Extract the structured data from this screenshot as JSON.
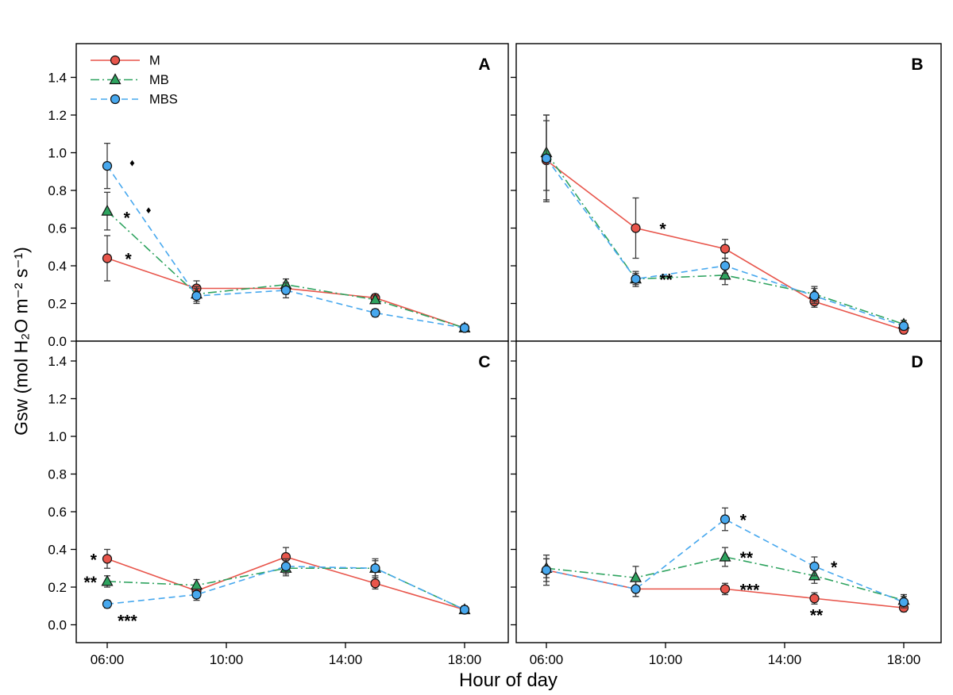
{
  "chart_data": {
    "type": "line",
    "title": "",
    "xlabel": "Hour of day",
    "ylabel": "Gsw (mol H₂O m⁻² s⁻¹)",
    "x_hours": [
      6,
      9,
      12,
      15,
      18
    ],
    "x_tick_hours": [
      6,
      10,
      14,
      18
    ],
    "x_tick_labels": [
      "06:00",
      "10:00",
      "14:00",
      "18:00"
    ],
    "y_ticks": [
      0,
      0.2,
      0.4,
      0.6,
      0.8,
      1.0,
      1.2,
      1.4
    ],
    "y_tick_labels": [
      "0.0",
      "0.2",
      "0.4",
      "0.6",
      "0.8",
      "1.0",
      "1.2",
      "1.4"
    ],
    "ylim_top_row": [
      0,
      1.58
    ],
    "ylim_bottom_row": [
      -0.1,
      1.5
    ],
    "grid": false,
    "legend_panel": "A",
    "series_styles": [
      {
        "name": "M",
        "color": "#e8554b",
        "marker": "circle",
        "line": "solid"
      },
      {
        "name": "MB",
        "color": "#2ea35f",
        "marker": "triangle",
        "line": "dashdot"
      },
      {
        "name": "MBS",
        "color": "#47a8ee",
        "marker": "circle",
        "line": "dash"
      }
    ],
    "panels": [
      {
        "label": "A",
        "series": [
          {
            "name": "M",
            "values": [
              0.44,
              0.28,
              0.28,
              0.23,
              0.07
            ],
            "errors": [
              0.12,
              0.04,
              0.03,
              0.02,
              0.02
            ]
          },
          {
            "name": "MB",
            "values": [
              0.69,
              0.25,
              0.3,
              0.22,
              0.07
            ],
            "errors": [
              0.1,
              0.04,
              0.03,
              0.02,
              0.02
            ]
          },
          {
            "name": "MBS",
            "values": [
              0.93,
              0.24,
              0.27,
              0.15,
              0.07
            ],
            "errors": [
              0.12,
              0.04,
              0.04,
              0.02,
              0.02
            ]
          }
        ],
        "annotations": [
          {
            "text": "*",
            "x": 6.6,
            "y": 0.44
          },
          {
            "text": "*",
            "x": 6.55,
            "y": 0.66
          },
          {
            "text": "♦",
            "x": 7.3,
            "y": 0.7
          },
          {
            "text": "♦",
            "x": 6.75,
            "y": 0.95
          }
        ]
      },
      {
        "label": "B",
        "series": [
          {
            "name": "M",
            "values": [
              0.96,
              0.6,
              0.49,
              0.21,
              0.06
            ],
            "errors": [
              0.21,
              0.16,
              0.05,
              0.03,
              0.02
            ]
          },
          {
            "name": "MB",
            "values": [
              1.0,
              0.33,
              0.35,
              0.25,
              0.09
            ],
            "errors": [
              0.2,
              0.03,
              0.05,
              0.04,
              0.02
            ]
          },
          {
            "name": "MBS",
            "values": [
              0.97,
              0.33,
              0.4,
              0.24,
              0.08
            ],
            "errors": [
              0.23,
              0.04,
              0.04,
              0.04,
              0.02
            ]
          }
        ],
        "annotations": [
          {
            "text": "*",
            "x": 9.8,
            "y": 0.6
          },
          {
            "text": "**",
            "x": 9.8,
            "y": 0.33
          }
        ]
      },
      {
        "label": "C",
        "series": [
          {
            "name": "M",
            "values": [
              0.35,
              0.18,
              0.36,
              0.22,
              0.08
            ],
            "errors": [
              0.05,
              0.03,
              0.05,
              0.03,
              0.01
            ]
          },
          {
            "name": "MB",
            "values": [
              0.23,
              0.21,
              0.3,
              0.3,
              0.08
            ],
            "errors": [
              0.03,
              0.03,
              0.04,
              0.04,
              0.02
            ]
          },
          {
            "name": "MBS",
            "values": [
              0.11,
              0.16,
              0.31,
              0.3,
              0.08
            ],
            "errors": [
              0.02,
              0.03,
              0.04,
              0.05,
              0.02
            ]
          }
        ],
        "annotations": [
          {
            "text": "*",
            "x": 5.65,
            "y": 0.35,
            "anchor": "end"
          },
          {
            "text": "**",
            "x": 5.65,
            "y": 0.23,
            "anchor": "end"
          },
          {
            "text": "***",
            "x": 6.35,
            "y": 0.025
          }
        ]
      },
      {
        "label": "D",
        "series": [
          {
            "name": "M",
            "values": [
              0.29,
              0.19,
              0.19,
              0.14,
              0.09
            ],
            "errors": [
              0.06,
              0.04,
              0.03,
              0.03,
              0.02
            ]
          },
          {
            "name": "MB",
            "values": [
              0.3,
              0.25,
              0.36,
              0.26,
              0.13
            ],
            "errors": [
              0.05,
              0.06,
              0.05,
              0.04,
              0.03
            ]
          },
          {
            "name": "MBS",
            "values": [
              0.29,
              0.19,
              0.56,
              0.31,
              0.12
            ],
            "errors": [
              0.08,
              0.04,
              0.06,
              0.05,
              0.03
            ]
          }
        ],
        "annotations": [
          {
            "text": "*",
            "x": 12.5,
            "y": 0.56
          },
          {
            "text": "**",
            "x": 12.5,
            "y": 0.36
          },
          {
            "text": "***",
            "x": 12.5,
            "y": 0.19
          },
          {
            "text": "*",
            "x": 15.55,
            "y": 0.31
          },
          {
            "text": "**",
            "x": 14.85,
            "y": 0.055
          }
        ]
      }
    ]
  }
}
